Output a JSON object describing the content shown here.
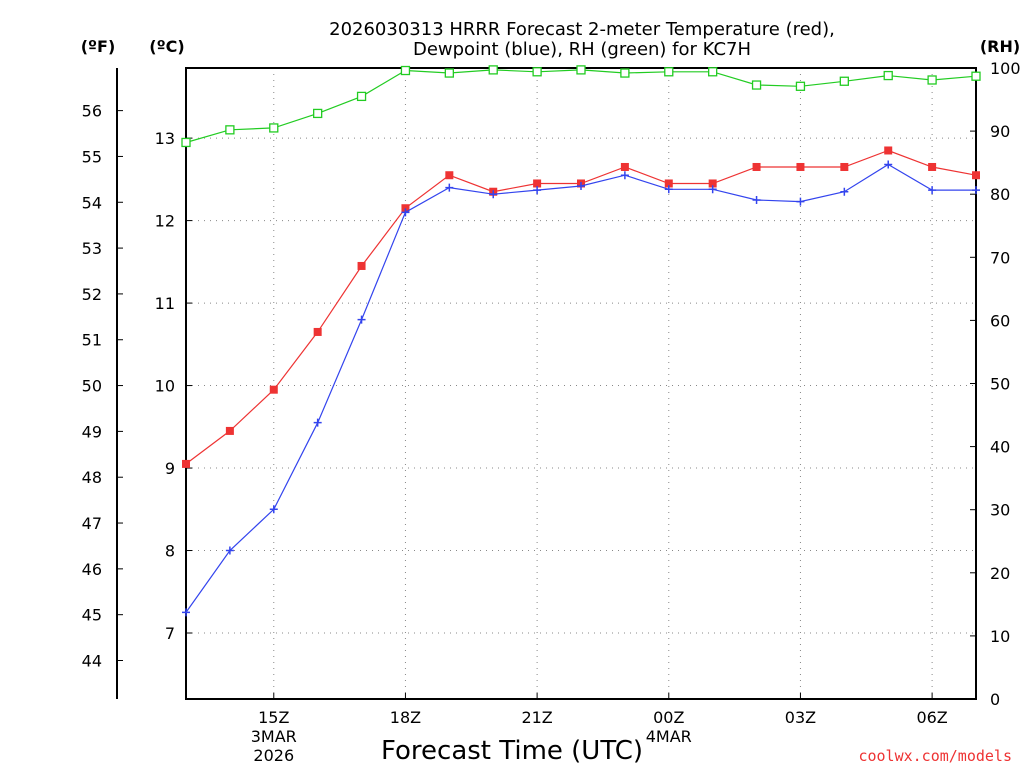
{
  "chart_data": {
    "type": "line",
    "title_line1": "2026030313 HRRR Forecast 2-meter Temperature (red),",
    "title_line2": "Dewpoint (blue), RH (green) for KC7H",
    "xlabel": "Forecast Time (UTC)",
    "credit": "coolwx.com/models",
    "units": {
      "fahrenheit": "(ºF)",
      "celsius": "(ºC)",
      "rh": "(RH)"
    },
    "hours": [
      13,
      14,
      15,
      16,
      17,
      18,
      19,
      20,
      21,
      22,
      23,
      24,
      25,
      26,
      27,
      28,
      29,
      30,
      31
    ],
    "x_ticks": [
      {
        "hour": 15,
        "label": "15Z",
        "sub1": "3MAR",
        "sub2": "2026"
      },
      {
        "hour": 18,
        "label": "18Z",
        "sub1": "",
        "sub2": ""
      },
      {
        "hour": 21,
        "label": "21Z",
        "sub1": "",
        "sub2": ""
      },
      {
        "hour": 24,
        "label": "00Z",
        "sub1": "4MAR",
        "sub2": ""
      },
      {
        "hour": 27,
        "label": "03Z",
        "sub1": "",
        "sub2": ""
      },
      {
        "hour": 30,
        "label": "06Z",
        "sub1": "",
        "sub2": ""
      }
    ],
    "celsius_range": [
      6.2,
      13.85
    ],
    "celsius_ticks": [
      7,
      8,
      9,
      10,
      11,
      12,
      13
    ],
    "fahrenheit_ticks": [
      44,
      45,
      46,
      47,
      48,
      49,
      50,
      51,
      52,
      53,
      54,
      55,
      56
    ],
    "rh_range": [
      0,
      100
    ],
    "rh_ticks": [
      0,
      10,
      20,
      30,
      40,
      50,
      60,
      70,
      80,
      90,
      100
    ],
    "series": [
      {
        "name": "Temperature",
        "color": "#ee3333",
        "marker": "filled-square",
        "values_c": [
          9.05,
          9.45,
          9.95,
          10.65,
          11.45,
          12.15,
          12.55,
          12.35,
          12.45,
          12.45,
          12.65,
          12.45,
          12.45,
          12.65,
          12.65,
          12.65,
          12.85,
          12.65,
          12.55
        ]
      },
      {
        "name": "Dewpoint",
        "color": "#3344ee",
        "marker": "plus",
        "values_c": [
          7.25,
          8.0,
          8.5,
          9.55,
          10.8,
          12.1,
          12.4,
          12.32,
          12.37,
          12.42,
          12.55,
          12.38,
          12.38,
          12.25,
          12.23,
          12.35,
          12.68,
          12.37,
          12.37
        ]
      },
      {
        "name": "RH",
        "color": "#22cc22",
        "marker": "open-square",
        "values_rh": [
          88.2,
          90.2,
          90.5,
          92.8,
          95.5,
          99.6,
          99.2,
          99.7,
          99.4,
          99.7,
          99.2,
          99.4,
          99.4,
          97.3,
          97.1,
          97.9,
          98.8,
          98.1,
          98.7
        ]
      }
    ]
  }
}
